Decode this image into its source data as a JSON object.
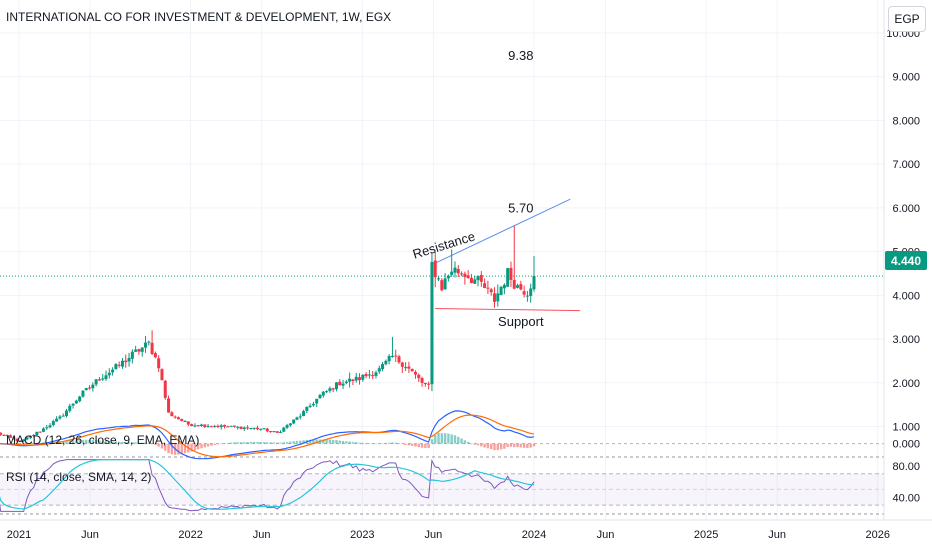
{
  "header": {
    "title": "INTERNATIONAL CO FOR INVESTMENT & DEVELOPMENT, 1W, EGX",
    "currency": "EGP"
  },
  "price_label": "4.440",
  "colors": {
    "up": "#089981",
    "down": "#f23645",
    "trendline": "#5b8def",
    "support": "#f7525f",
    "macd_line": "#2962ff",
    "signal_line": "#ff6d00",
    "rsi_line": "#7e57c2",
    "rsi_sma": "#26c6da",
    "price_line": "#089981"
  },
  "chart_data": {
    "type": "candlestick",
    "title": "INTERNATIONAL CO FOR INVESTMENT & DEVELOPMENT, 1W, EGX",
    "x_ticks": [
      {
        "date": "2021-01-01",
        "label": "2021"
      },
      {
        "date": "2021-06-01",
        "label": "Jun"
      },
      {
        "date": "2022-01-01",
        "label": "2022"
      },
      {
        "date": "2022-06-01",
        "label": "Jun"
      },
      {
        "date": "2023-01-01",
        "label": "2023"
      },
      {
        "date": "2023-06-01",
        "label": "Jun"
      },
      {
        "date": "2024-01-01",
        "label": "2024"
      },
      {
        "date": "2024-06-01",
        "label": "Jun"
      },
      {
        "date": "2025-01-01",
        "label": "2025"
      },
      {
        "date": "2025-06-01",
        "label": "Jun"
      },
      {
        "date": "2026-01-01",
        "label": "2026"
      }
    ],
    "y_ticks": [
      "1.000",
      "2.000",
      "3.000",
      "4.000",
      "5.000",
      "6.000",
      "7.000",
      "8.000",
      "9.000",
      "10.000"
    ],
    "ylim": [
      0.6,
      10.0
    ],
    "last_price": 4.44,
    "price_anchors": [
      [
        "2020-11-16",
        0.85
      ],
      [
        "2021-01-04",
        0.65
      ],
      [
        "2021-02-15",
        0.9
      ],
      [
        "2021-03-29",
        1.2
      ],
      [
        "2021-05-10",
        1.7
      ],
      [
        "2021-06-21",
        2.1
      ],
      [
        "2021-08-02",
        2.4
      ],
      [
        "2021-09-06",
        2.7
      ],
      [
        "2021-10-04",
        2.9
      ],
      [
        "2021-10-25",
        2.4
      ],
      [
        "2021-11-15",
        1.3
      ],
      [
        "2021-12-27",
        1.05
      ],
      [
        "2022-03-14",
        1.0
      ],
      [
        "2022-05-30",
        0.95
      ],
      [
        "2022-07-04",
        0.85
      ],
      [
        "2022-08-22",
        1.25
      ],
      [
        "2022-10-03",
        1.7
      ],
      [
        "2022-11-14",
        2.0
      ],
      [
        "2022-12-26",
        2.1
      ],
      [
        "2023-02-06",
        2.3
      ],
      [
        "2023-03-06",
        2.6
      ],
      [
        "2023-04-03",
        2.4
      ],
      [
        "2023-05-08",
        2.0
      ],
      [
        "2023-05-22",
        1.9
      ],
      [
        "2023-05-29",
        4.7
      ],
      [
        "2023-06-19",
        4.2
      ],
      [
        "2023-07-10",
        4.6
      ],
      [
        "2023-08-07",
        4.5
      ],
      [
        "2023-09-11",
        4.25
      ],
      [
        "2023-10-09",
        3.9
      ],
      [
        "2023-11-06",
        4.5
      ],
      [
        "2023-11-27",
        4.2
      ],
      [
        "2023-12-18",
        4.1
      ],
      [
        "2024-01-01",
        4.44
      ]
    ],
    "annotations": [
      {
        "text": "9.38",
        "date": "2023-12-04",
        "price": 9.38
      },
      {
        "text": "5.70",
        "date": "2023-12-04",
        "price": 5.9
      },
      {
        "text": "Resistance",
        "date": "2023-06-26",
        "price": 5.05
      },
      {
        "text": "Support",
        "date": "2023-12-04",
        "price": 3.3
      }
    ],
    "resistance_line": {
      "start": [
        "2023-05-29",
        4.7
      ],
      "end": [
        "2024-03-18",
        6.2
      ]
    },
    "support_line": {
      "start": [
        "2023-06-05",
        3.7
      ],
      "end": [
        "2024-04-08",
        3.65
      ]
    },
    "macd": {
      "label": "MACD (12, 26, close, 9, EMA, EMA)",
      "tick": "0.000",
      "ylim": [
        -0.25,
        0.6
      ]
    },
    "rsi": {
      "label": "RSI (14, close, SMA, 14, 2)",
      "ticks": [
        "80.00",
        "40.00"
      ],
      "ylim": [
        20,
        90
      ]
    }
  }
}
